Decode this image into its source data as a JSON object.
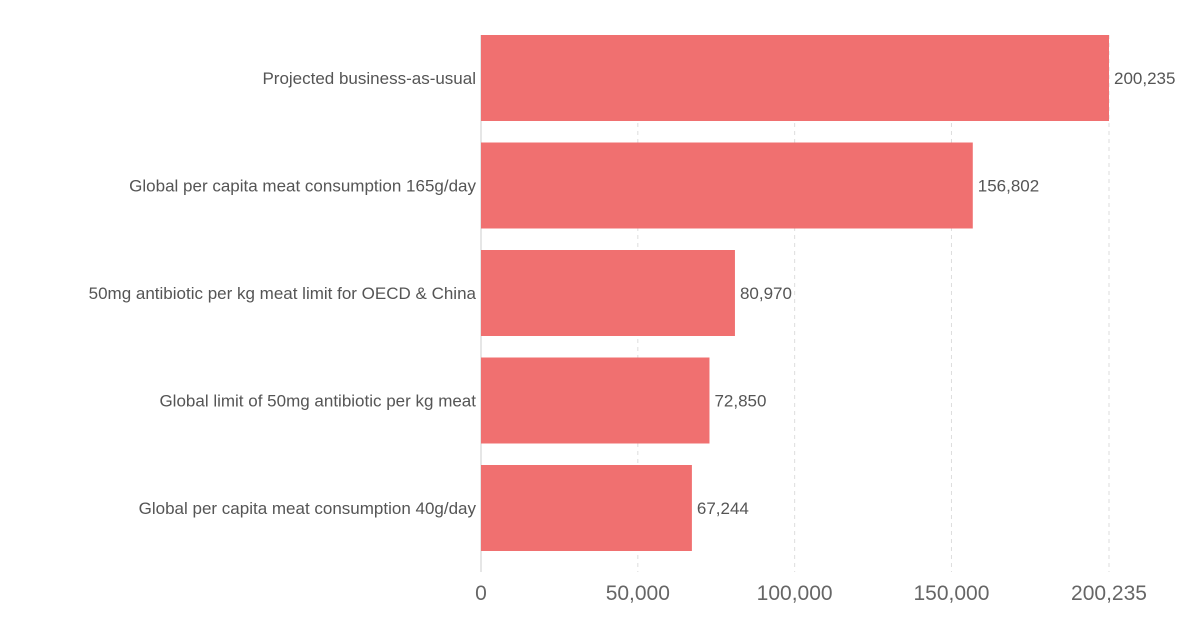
{
  "chart_data": {
    "type": "bar",
    "orientation": "horizontal",
    "categories": [
      "Projected business-as-usual",
      "Global per capita meat consumption 165g/day",
      "50mg antibiotic per kg meat limit for OECD & China",
      "Global limit of 50mg antibiotic per kg meat",
      "Global per capita meat consumption 40g/day"
    ],
    "values": [
      200235,
      156802,
      80970,
      72850,
      67244
    ],
    "value_labels": [
      "200,235",
      "156,802",
      "80,970",
      "72,850",
      "67,244"
    ],
    "xlim": [
      0,
      200235
    ],
    "ticks": [
      0,
      50000,
      100000,
      150000,
      200235
    ],
    "tick_labels": [
      "0",
      "50,000",
      "100,000",
      "150,000",
      "200,235"
    ],
    "grid": "vertical-dashed",
    "legend": "none",
    "colors": {
      "bar": "#f07070",
      "text": "#555555",
      "tick_text": "#666666",
      "grid": "#dddddd"
    }
  }
}
